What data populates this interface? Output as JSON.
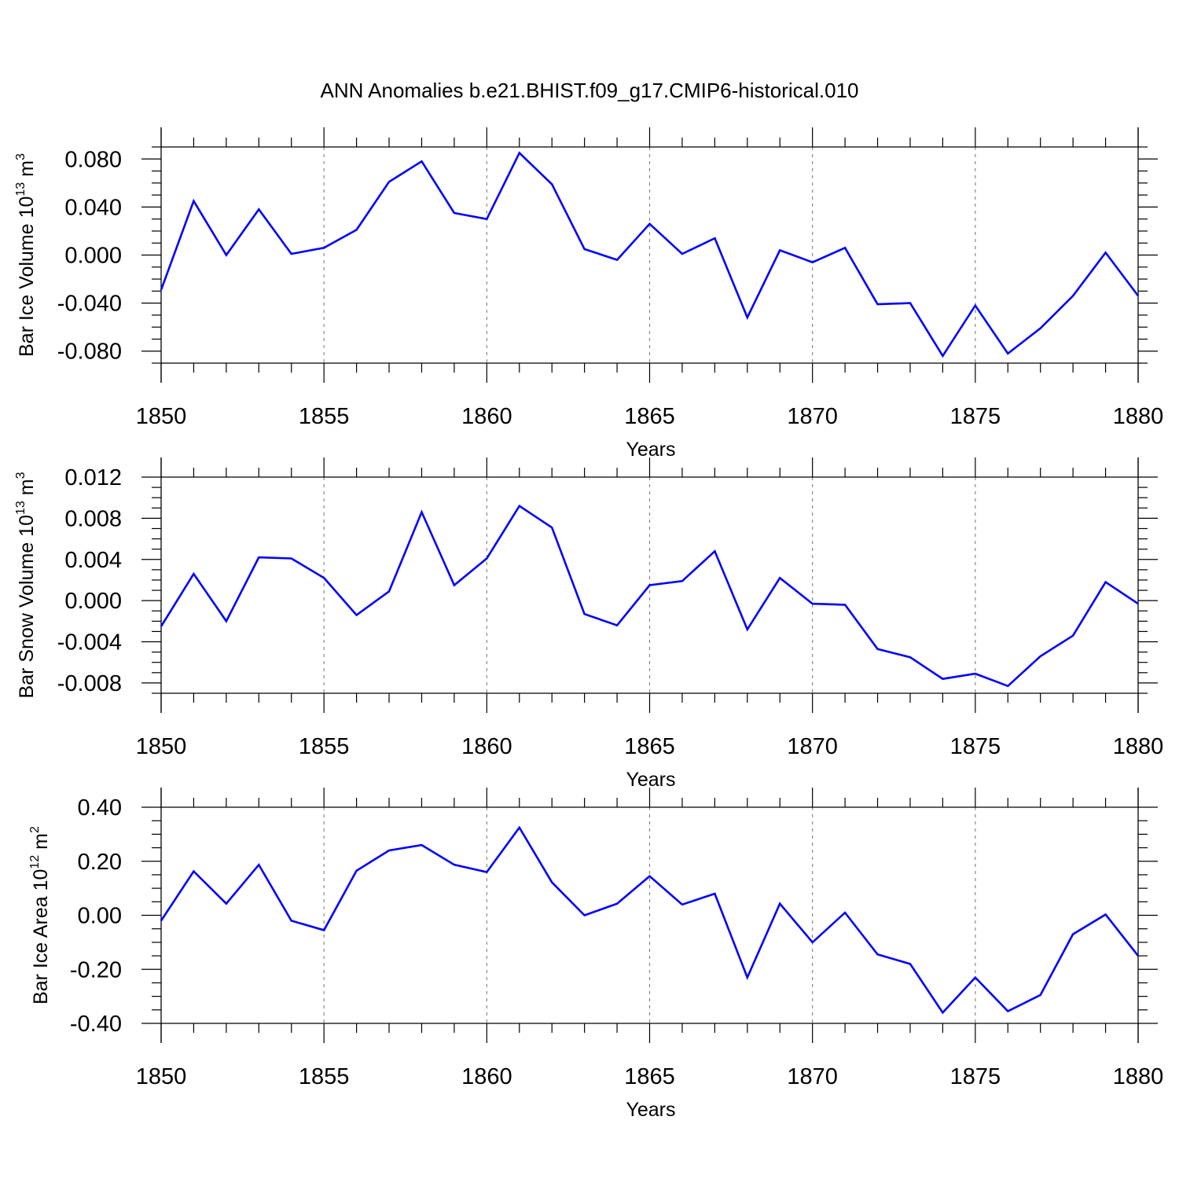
{
  "figure": {
    "title": "ANN Anomalies b.e21.BHIST.f09_g17.CMIP6-historical.010"
  },
  "chart_data": [
    {
      "type": "line",
      "ylabel_main": "Bar Ice Volume 10",
      "ylabel_sup": "13",
      "ylabel_unit": " m",
      "ylabel_unit_sup": "3",
      "xlabel": "Years",
      "xlim": [
        1850,
        1880
      ],
      "ylim": [
        -0.09,
        0.09
      ],
      "xticks": [
        1850,
        1855,
        1860,
        1865,
        1870,
        1875,
        1880
      ],
      "xtick_labels": [
        "1850",
        "1855",
        "1860",
        "1865",
        "1870",
        "1875",
        "1880"
      ],
      "yticks": [
        -0.08,
        -0.04,
        0.0,
        0.04,
        0.08
      ],
      "ytick_labels": [
        "-0.080",
        "-0.040",
        "0.000",
        "0.040",
        "0.080"
      ],
      "x": [
        1850,
        1851,
        1852,
        1853,
        1854,
        1855,
        1856,
        1857,
        1858,
        1859,
        1860,
        1861,
        1862,
        1863,
        1864,
        1865,
        1866,
        1867,
        1868,
        1869,
        1870,
        1871,
        1872,
        1873,
        1874,
        1875,
        1876,
        1877,
        1878,
        1879,
        1880
      ],
      "y": [
        -0.029,
        0.045,
        0.0,
        0.038,
        0.001,
        0.006,
        0.021,
        0.061,
        0.078,
        0.035,
        0.03,
        0.085,
        0.059,
        0.005,
        -0.004,
        0.026,
        0.001,
        0.014,
        -0.052,
        0.004,
        -0.006,
        0.006,
        -0.041,
        -0.04,
        -0.084,
        -0.042,
        -0.082,
        -0.061,
        -0.034,
        0.002,
        -0.034
      ]
    },
    {
      "type": "line",
      "ylabel_main": "Bar Snow Volume 10",
      "ylabel_sup": "13",
      "ylabel_unit": " m",
      "ylabel_unit_sup": "3",
      "xlabel": "Years",
      "xlim": [
        1850,
        1880
      ],
      "ylim": [
        -0.009,
        0.012
      ],
      "xticks": [
        1850,
        1855,
        1860,
        1865,
        1870,
        1875,
        1880
      ],
      "xtick_labels": [
        "1850",
        "1855",
        "1860",
        "1865",
        "1870",
        "1875",
        "1880"
      ],
      "yticks": [
        -0.008,
        -0.004,
        0.0,
        0.004,
        0.008,
        0.012
      ],
      "ytick_labels": [
        "-0.008",
        "-0.004",
        "0.000",
        "0.004",
        "0.008",
        "0.012"
      ],
      "x": [
        1850,
        1851,
        1852,
        1853,
        1854,
        1855,
        1856,
        1857,
        1858,
        1859,
        1860,
        1861,
        1862,
        1863,
        1864,
        1865,
        1866,
        1867,
        1868,
        1869,
        1870,
        1871,
        1872,
        1873,
        1874,
        1875,
        1876,
        1877,
        1878,
        1879,
        1880
      ],
      "y": [
        -0.0025,
        0.0026,
        -0.002,
        0.0042,
        0.0041,
        0.0022,
        -0.0014,
        0.0009,
        0.0086,
        0.0015,
        0.0041,
        0.0092,
        0.0071,
        -0.0013,
        -0.0024,
        0.0015,
        0.0019,
        0.0048,
        -0.0028,
        0.0022,
        -0.0003,
        -0.0004,
        -0.0047,
        -0.0055,
        -0.0076,
        -0.0071,
        -0.0083,
        -0.0054,
        -0.0034,
        0.0018,
        -0.0003
      ]
    },
    {
      "type": "line",
      "ylabel_main": "Bar Ice Area 10",
      "ylabel_sup": "12",
      "ylabel_unit": " m",
      "ylabel_unit_sup": "2",
      "xlabel": "Years",
      "xlim": [
        1850,
        1880
      ],
      "ylim": [
        -0.4,
        0.4
      ],
      "xticks": [
        1850,
        1855,
        1860,
        1865,
        1870,
        1875,
        1880
      ],
      "xtick_labels": [
        "1850",
        "1855",
        "1860",
        "1865",
        "1870",
        "1875",
        "1880"
      ],
      "yticks": [
        -0.4,
        -0.2,
        0.0,
        0.2,
        0.4
      ],
      "ytick_labels": [
        "-0.40",
        "-0.20",
        "0.00",
        "0.20",
        "0.40"
      ],
      "x": [
        1850,
        1851,
        1852,
        1853,
        1854,
        1855,
        1856,
        1857,
        1858,
        1859,
        1860,
        1861,
        1862,
        1863,
        1864,
        1865,
        1866,
        1867,
        1868,
        1869,
        1870,
        1871,
        1872,
        1873,
        1874,
        1875,
        1876,
        1877,
        1878,
        1879,
        1880
      ],
      "y": [
        -0.02,
        0.163,
        0.043,
        0.187,
        -0.02,
        -0.055,
        0.165,
        0.24,
        0.26,
        0.187,
        0.16,
        0.325,
        0.122,
        0.0,
        0.043,
        0.145,
        0.04,
        0.08,
        -0.23,
        0.043,
        -0.1,
        0.01,
        -0.145,
        -0.18,
        -0.36,
        -0.23,
        -0.355,
        -0.295,
        -0.07,
        0.003,
        -0.15
      ]
    }
  ]
}
